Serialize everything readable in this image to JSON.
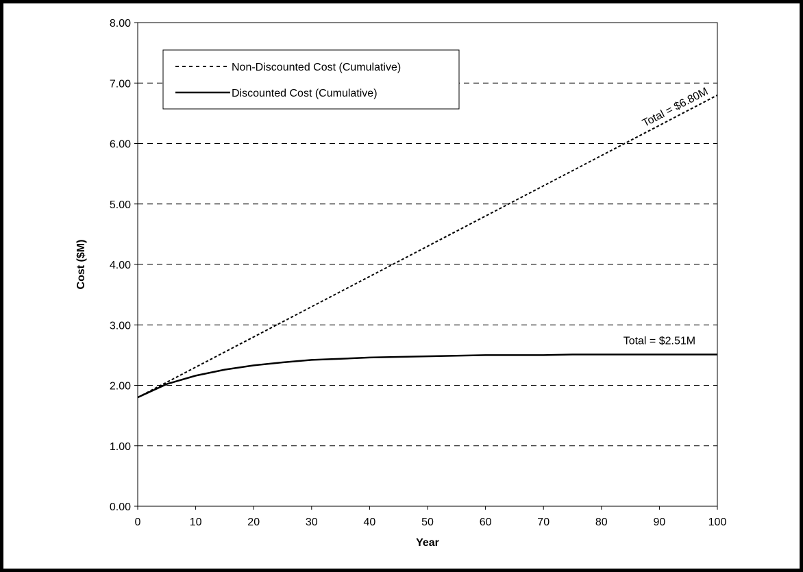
{
  "chart_data": {
    "type": "line",
    "xlabel": "Year",
    "ylabel": "Cost ($M)",
    "xlim": [
      0,
      100
    ],
    "ylim": [
      0,
      8
    ],
    "xticks": [
      "0",
      "10",
      "20",
      "30",
      "40",
      "50",
      "60",
      "70",
      "80",
      "90",
      "100"
    ],
    "yticks": [
      "0.00",
      "1.00",
      "2.00",
      "3.00",
      "4.00",
      "5.00",
      "6.00",
      "7.00",
      "8.00"
    ],
    "grid": "horizontal-dashed",
    "legend_position": "top-left",
    "series": [
      {
        "name": "Non-Discounted Cost (Cumulative)",
        "style": "dashed",
        "x": [
          0,
          100
        ],
        "y": [
          1.8,
          6.8
        ]
      },
      {
        "name": "Discounted Cost (Cumulative)",
        "style": "solid",
        "x": [
          0,
          5,
          10,
          15,
          20,
          25,
          30,
          35,
          40,
          45,
          50,
          55,
          60,
          65,
          70,
          75,
          80,
          85,
          90,
          95,
          100
        ],
        "y": [
          1.8,
          2.02,
          2.16,
          2.26,
          2.33,
          2.38,
          2.42,
          2.44,
          2.46,
          2.47,
          2.48,
          2.49,
          2.5,
          2.5,
          2.5,
          2.51,
          2.51,
          2.51,
          2.51,
          2.51,
          2.51
        ]
      }
    ],
    "annotations": [
      {
        "text": "Total = $6.80M",
        "x": 93,
        "y": 6.55,
        "rotate_with": "Non-Discounted Cost (Cumulative)"
      },
      {
        "text": "Total = $2.51M",
        "x": 90,
        "y": 2.68
      }
    ]
  }
}
